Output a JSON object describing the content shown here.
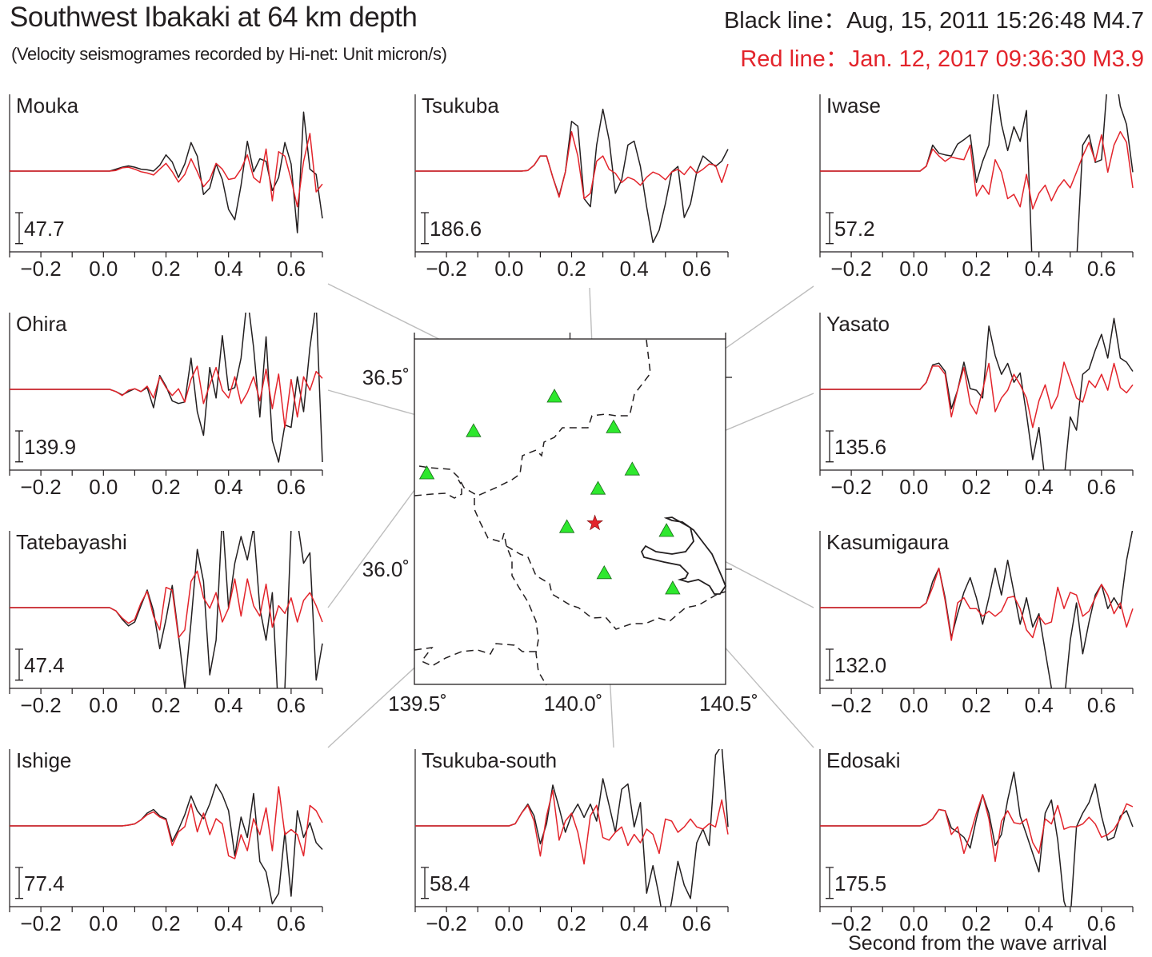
{
  "header": {
    "title": "Southwest Ibakaki at 64 km depth",
    "subtitle": "(Velocity seismogrames recorded by Hi-net: Unit micron/s)",
    "legend_black": "Black line：Aug, 15, 2011 15:26:48 M4.7",
    "legend_red": "Red line：Jan. 12, 2017 09:36:30 M3.9"
  },
  "colors": {
    "black_line": "#231f20",
    "red_line": "#e3242b",
    "station": "#2ee82e",
    "epicenter": "#e3242b",
    "connector": "#bdbdbd"
  },
  "chart_data": {
    "type": "line",
    "xlabel": "Second from the wave arrival",
    "xlim": [
      -0.3,
      0.7
    ],
    "x_tick_labels": [
      "−0.2",
      "0.0",
      "0.2",
      "0.4",
      "0.6"
    ],
    "x_tick_values": [
      -0.2,
      0.0,
      0.2,
      0.4,
      0.6
    ],
    "y_unit": "micron/s",
    "x": [
      -0.3,
      0.0,
      0.02,
      0.04,
      0.06,
      0.08,
      0.1,
      0.12,
      0.14,
      0.16,
      0.18,
      0.2,
      0.22,
      0.24,
      0.26,
      0.28,
      0.3,
      0.32,
      0.34,
      0.36,
      0.38,
      0.4,
      0.42,
      0.44,
      0.46,
      0.48,
      0.5,
      0.52,
      0.54,
      0.56,
      0.58,
      0.6,
      0.62,
      0.64,
      0.66,
      0.68,
      0.7
    ],
    "panels": [
      {
        "station": "Mouka",
        "scale_bar": "47.7",
        "series": [
          {
            "name": "Black line",
            "values": [
              0,
              0,
              0,
              3,
              6,
              8,
              6,
              3,
              2,
              0,
              9,
              25,
              14,
              -10,
              11,
              44,
              23,
              -36,
              -26,
              11,
              -13,
              -59,
              -75,
              -22,
              46,
              -1,
              19,
              15,
              -30,
              -10,
              44,
              11,
              -95,
              91,
              3,
              -5,
              -73
            ]
          },
          {
            "name": "Red line",
            "values": [
              0,
              0,
              0,
              1,
              5,
              6,
              3,
              -1,
              -3,
              -6,
              3,
              12,
              -1,
              -17,
              -5,
              19,
              -1,
              -24,
              -13,
              12,
              3,
              -13,
              -11,
              3,
              25,
              -10,
              -18,
              34,
              -46,
              30,
              23,
              -13,
              -55,
              15,
              58,
              -32,
              -20
            ]
          }
        ]
      },
      {
        "station": "Tsukuba",
        "scale_bar": "186.6",
        "series": [
          {
            "name": "Black line",
            "values": [
              0,
              0,
              0,
              0,
              4,
              35,
              91,
              91,
              -37,
              -149,
              -6,
              300,
              271,
              -166,
              -215,
              157,
              373,
              188,
              -134,
              -52,
              157,
              181,
              28,
              -215,
              -431,
              -356,
              -196,
              -6,
              28,
              -280,
              -198,
              -6,
              91,
              60,
              28,
              60,
              132
            ]
          },
          {
            "name": "Red line",
            "values": [
              0,
              0,
              0,
              0,
              4,
              35,
              91,
              91,
              -37,
              -157,
              -6,
              237,
              91,
              -166,
              -134,
              60,
              91,
              11,
              -13,
              -69,
              -37,
              -52,
              -86,
              -37,
              -6,
              -21,
              -52,
              -6,
              11,
              -21,
              28,
              -13,
              11,
              43,
              35,
              -69,
              43
            ]
          }
        ]
      },
      {
        "station": "Iwase",
        "scale_bar": "57.2",
        "series": [
          {
            "name": "Black line",
            "values": [
              0,
              0,
              0,
              9,
              48,
              33,
              30,
              28,
              50,
              58,
              67,
              -21,
              18,
              48,
              172,
              87,
              38,
              82,
              55,
              112,
              -200,
              -229,
              -229,
              -229,
              -229,
              -229,
              -229,
              -172,
              48,
              67,
              16,
              21,
              172,
              200,
              120,
              86,
              -2
            ]
          },
          {
            "name": "Red line",
            "values": [
              0,
              0,
              0,
              9,
              41,
              28,
              18,
              26,
              23,
              21,
              48,
              -46,
              -26,
              -43,
              21,
              -2,
              -51,
              -43,
              -66,
              -6,
              -70,
              -41,
              -26,
              -55,
              -31,
              -16,
              -31,
              -2,
              28,
              53,
              18,
              67,
              -2,
              48,
              73,
              53,
              -31
            ]
          }
        ]
      },
      {
        "station": "Ohira",
        "scale_bar": "139.9",
        "series": [
          {
            "name": "Black line",
            "values": [
              0,
              0,
              0,
              -10,
              -25,
              -10,
              3,
              -10,
              8,
              -83,
              63,
              14,
              -52,
              -64,
              -57,
              141,
              -101,
              -208,
              99,
              -39,
              243,
              -4,
              8,
              141,
              420,
              189,
              -125,
              238,
              -232,
              -329,
              -161,
              -172,
              57,
              -101,
              189,
              392,
              -329
            ]
          },
          {
            "name": "Red line",
            "values": [
              0,
              0,
              0,
              -10,
              -28,
              -4,
              3,
              -10,
              14,
              -39,
              57,
              8,
              -28,
              3,
              -57,
              45,
              105,
              -64,
              21,
              99,
              -4,
              -39,
              57,
              -64,
              -15,
              57,
              -52,
              92,
              -88,
              69,
              -172,
              45,
              -125,
              57,
              -4,
              81,
              50
            ]
          }
        ]
      },
      {
        "station": "Yasato",
        "scale_bar": "135.6",
        "series": [
          {
            "name": "Black line",
            "values": [
              0,
              0,
              0,
              31,
              107,
              115,
              79,
              -85,
              -4,
              119,
              3,
              -4,
              -38,
              277,
              148,
              66,
              114,
              31,
              72,
              -108,
              -308,
              -167,
              -407,
              -475,
              -475,
              -400,
              -121,
              -179,
              66,
              89,
              172,
              241,
              137,
              311,
              137,
              119,
              79
            ]
          },
          {
            "name": "Red line",
            "values": [
              0,
              0,
              0,
              31,
              102,
              102,
              66,
              -121,
              -4,
              96,
              -62,
              -108,
              -4,
              114,
              -98,
              -38,
              -4,
              66,
              20,
              -38,
              -167,
              -50,
              20,
              -85,
              -27,
              119,
              43,
              -38,
              -56,
              38,
              8,
              66,
              -4,
              114,
              8,
              -15,
              20
            ]
          }
        ]
      },
      {
        "station": "Tatebayashi",
        "scale_bar": "47.4",
        "series": [
          {
            "name": "Black line",
            "values": [
              0,
              0,
              0,
              -5,
              -18,
              -28,
              -22,
              3,
              27,
              -5,
              -63,
              -18,
              34,
              -42,
              -123,
              -22,
              89,
              40,
              -103,
              -50,
              142,
              -1,
              68,
              109,
              73,
              123,
              -1,
              -50,
              23,
              -166,
              -123,
              121,
              133,
              68,
              84,
              -111,
              -55
            ]
          },
          {
            "name": "Red line",
            "values": [
              0,
              0,
              0,
              -5,
              -16,
              -24,
              -18,
              7,
              25,
              -13,
              -34,
              31,
              27,
              -46,
              -34,
              40,
              56,
              15,
              -1,
              23,
              -22,
              -1,
              44,
              -13,
              44,
              3,
              -13,
              36,
              -30,
              3,
              -9,
              15,
              -22,
              11,
              23,
              3,
              -22
            ]
          }
        ]
      },
      {
        "station": "Kasumigaura",
        "scale_bar": "132.0",
        "series": [
          {
            "name": "Black line",
            "values": [
              0,
              0,
              0,
              20,
              111,
              168,
              42,
              -128,
              -26,
              65,
              128,
              42,
              -71,
              42,
              168,
              54,
              202,
              65,
              -71,
              42,
              -83,
              -26,
              -186,
              -343,
              -462,
              -409,
              -140,
              20,
              -197,
              -61,
              54,
              99,
              -4,
              42,
              -4,
              202,
              338
            ]
          },
          {
            "name": "Red line",
            "values": [
              0,
              0,
              0,
              20,
              87,
              168,
              30,
              -140,
              20,
              42,
              -4,
              -4,
              -37,
              -15,
              -37,
              -15,
              42,
              48,
              -4,
              -95,
              -128,
              -37,
              -71,
              -61,
              87,
              -4,
              65,
              54,
              -37,
              -15,
              42,
              99,
              54,
              -26,
              20,
              -83,
              -4
            ]
          }
        ]
      },
      {
        "station": "Ishige",
        "scale_bar": "77.4",
        "series": [
          {
            "name": "Black line",
            "values": [
              0,
              0,
              0,
              0,
              0,
              2,
              5,
              15,
              32,
              41,
              25,
              18,
              -39,
              -9,
              28,
              75,
              38,
              18,
              55,
              104,
              78,
              38,
              -75,
              22,
              -29,
              81,
              -89,
              -115,
              -195,
              -169,
              -15,
              -176,
              38,
              -29,
              8,
              -42,
              -59
            ]
          },
          {
            "name": "Red line",
            "values": [
              0,
              0,
              0,
              0,
              0,
              2,
              5,
              15,
              28,
              35,
              22,
              15,
              -49,
              -15,
              -2,
              55,
              -15,
              32,
              -22,
              18,
              5,
              -75,
              -82,
              -22,
              -62,
              18,
              -22,
              45,
              -62,
              98,
              -22,
              -9,
              -22,
              -75,
              51,
              38,
              8
            ]
          }
        ]
      },
      {
        "station": "Tsukuba-south",
        "scale_bar": "58.4",
        "series": [
          {
            "name": "Black line",
            "values": [
              0,
              0,
              4,
              24,
              41,
              19,
              -34,
              4,
              77,
              34,
              -12,
              21,
              41,
              16,
              41,
              9,
              89,
              39,
              -12,
              69,
              79,
              -2,
              44,
              -127,
              -75,
              -133,
              -204,
              -142,
              -67,
              -112,
              -137,
              -32,
              -6,
              -37,
              134,
              152,
              -2
            ]
          },
          {
            "name": "Red line",
            "values": [
              0,
              0,
              4,
              24,
              39,
              9,
              -57,
              19,
              67,
              -27,
              9,
              24,
              -12,
              -72,
              19,
              39,
              -22,
              -27,
              -12,
              -2,
              -37,
              -16,
              -32,
              -6,
              -16,
              -52,
              13,
              9,
              -12,
              -2,
              13,
              -2,
              -6,
              4,
              -2,
              49,
              -16
            ]
          }
        ]
      },
      {
        "station": "Edosaki",
        "scale_bar": "175.5",
        "series": [
          {
            "name": "Black line",
            "values": [
              0,
              0,
              0,
              11,
              40,
              93,
              86,
              -12,
              -35,
              -65,
              -126,
              40,
              177,
              72,
              -111,
              -49,
              147,
              305,
              56,
              -49,
              -156,
              -261,
              72,
              147,
              -81,
              -428,
              -534,
              -5,
              72,
              132,
              237,
              56,
              -81,
              -65,
              56,
              86,
              -5
            ]
          },
          {
            "name": "Red line",
            "values": [
              0,
              0,
              0,
              11,
              40,
              93,
              86,
              -49,
              -5,
              -156,
              -49,
              72,
              177,
              40,
              -202,
              26,
              86,
              18,
              11,
              40,
              -95,
              -156,
              40,
              11,
              116,
              -19,
              -5,
              -5,
              11,
              49,
              11,
              -65,
              -49,
              -19,
              40,
              125,
              109
            ]
          }
        ]
      }
    ],
    "map": {
      "lon_range": [
        139.5,
        140.5
      ],
      "lat_range": [
        35.7,
        36.6
      ],
      "lon_tick_labels": [
        "139.5˚",
        "140.0˚",
        "140.5˚"
      ],
      "lon_ticks": [
        139.5,
        140.0,
        140.5
      ],
      "lat_tick_labels": [
        "36.5˚",
        "36.0˚"
      ],
      "lat_ticks": [
        36.5,
        36.0
      ],
      "epicenter": {
        "lon": 140.08,
        "lat": 36.12
      },
      "stations": [
        {
          "name": "Mouka",
          "lon": 139.95,
          "lat": 36.45
        },
        {
          "name": "Tsukuba",
          "lon": 140.09,
          "lat": 36.21
        },
        {
          "name": "Iwase",
          "lon": 140.14,
          "lat": 36.37
        },
        {
          "name": "Ohira",
          "lon": 139.69,
          "lat": 36.36
        },
        {
          "name": "Yasato",
          "lon": 140.2,
          "lat": 36.26
        },
        {
          "name": "Tatebayashi",
          "lon": 139.54,
          "lat": 36.25
        },
        {
          "name": "Kasumigaura",
          "lon": 140.31,
          "lat": 36.1
        },
        {
          "name": "Ishige",
          "lon": 139.99,
          "lat": 36.11
        },
        {
          "name": "Tsukuba-south",
          "lon": 140.11,
          "lat": 35.99
        },
        {
          "name": "Edosaki",
          "lon": 140.33,
          "lat": 35.95
        }
      ]
    }
  }
}
